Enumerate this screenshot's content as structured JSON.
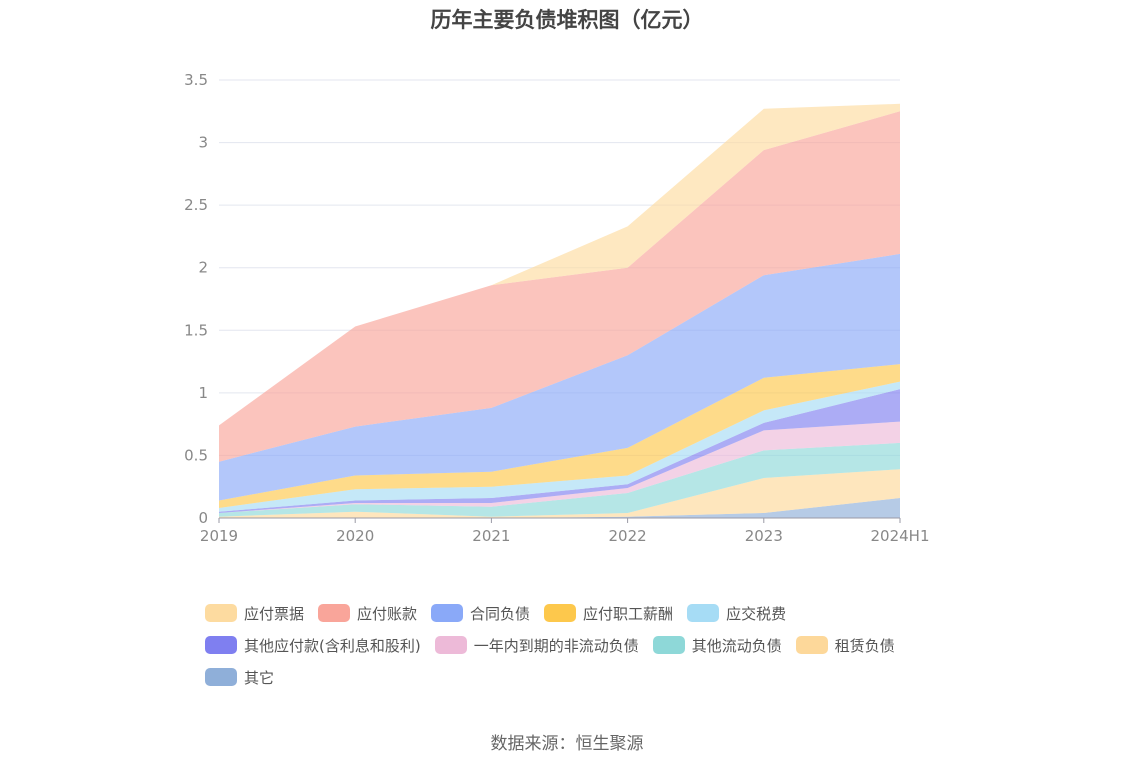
{
  "chart_data": {
    "type": "area",
    "stacked": true,
    "title": "历年主要负债堆积图（亿元）",
    "categories": [
      "2019",
      "2020",
      "2021",
      "2022",
      "2023",
      "2024H1"
    ],
    "ylim": [
      0,
      3.5
    ],
    "yticks": [
      "0",
      "0.5",
      "1",
      "1.5",
      "2",
      "2.5",
      "3",
      "3.5"
    ],
    "grid": true,
    "series_bottom_to_top": [
      {
        "name": "其它",
        "color": "#8fafd9",
        "values": [
          0,
          0,
          0,
          0.01,
          0.04,
          0.16
        ]
      },
      {
        "name": "租赁负债",
        "color": "#fdd89a",
        "values": [
          0.01,
          0.05,
          0.01,
          0.03,
          0.28,
          0.23
        ]
      },
      {
        "name": "其他流动负债",
        "color": "#8ed8d8",
        "values": [
          0.03,
          0.06,
          0.08,
          0.16,
          0.22,
          0.21
        ]
      },
      {
        "name": "一年内到期的非流动负债",
        "color": "#edbad8",
        "values": [
          0,
          0.01,
          0.03,
          0.04,
          0.16,
          0.17
        ]
      },
      {
        "name": "其他应付款(含利息和股利)",
        "color": "#7f7ff0",
        "values": [
          0.01,
          0.02,
          0.04,
          0.03,
          0.06,
          0.26
        ]
      },
      {
        "name": "应交税费",
        "color": "#a6dcf5",
        "values": [
          0.03,
          0.09,
          0.09,
          0.07,
          0.1,
          0.06
        ]
      },
      {
        "name": "应付职工薪酬",
        "color": "#fdc84c",
        "values": [
          0.06,
          0.11,
          0.12,
          0.22,
          0.26,
          0.14
        ]
      },
      {
        "name": "合同负债",
        "color": "#8aa9f8",
        "values": [
          0.31,
          0.39,
          0.51,
          0.74,
          0.82,
          0.88
        ]
      },
      {
        "name": "应付账款",
        "color": "#f9a59a",
        "values": [
          0.29,
          0.8,
          0.98,
          0.7,
          1.0,
          1.14
        ]
      },
      {
        "name": "应付票据",
        "color": "#fddba0",
        "values": [
          0,
          0,
          0,
          0.33,
          0.33,
          0.06
        ]
      }
    ]
  },
  "legend": {
    "rows": [
      [
        {
          "label": "应付票据",
          "color": "#fddba0"
        },
        {
          "label": "应付账款",
          "color": "#f9a59a"
        },
        {
          "label": "合同负债",
          "color": "#8aa9f8"
        },
        {
          "label": "应付职工薪酬",
          "color": "#fdc84c"
        },
        {
          "label": "应交税费",
          "color": "#a6dcf5"
        }
      ],
      [
        {
          "label": "其他应付款(含利息和股利)",
          "color": "#7f7ff0"
        },
        {
          "label": "一年内到期的非流动负债",
          "color": "#edbad8"
        },
        {
          "label": "其他流动负债",
          "color": "#8ed8d8"
        },
        {
          "label": "租赁负债",
          "color": "#fdd89a"
        }
      ],
      [
        {
          "label": "其它",
          "color": "#8fafd9"
        }
      ]
    ]
  },
  "source": "数据来源：恒生聚源"
}
